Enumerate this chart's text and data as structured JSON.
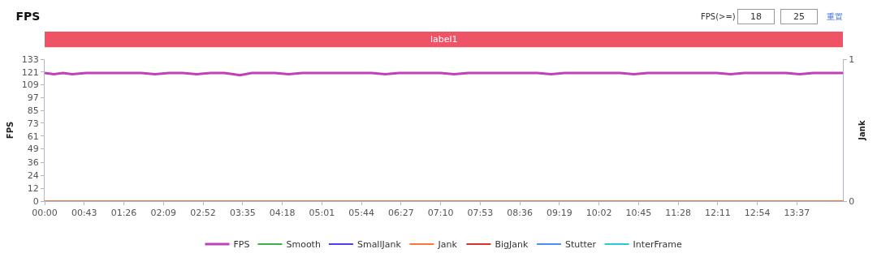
{
  "chart_data": {
    "type": "line",
    "title": "FPS",
    "ylabel": "FPS",
    "y2label": "Jank",
    "annotations": [
      "FPS(>=)",
      "18",
      "25",
      "重置"
    ],
    "bands": [
      {
        "axis": "x",
        "from": 0,
        "to": 867,
        "label": "label1"
      }
    ],
    "xlim": [
      0,
      867
    ],
    "xticks": [
      {
        "value": 0,
        "label": "00:00"
      },
      {
        "value": 43,
        "label": "00:43"
      },
      {
        "value": 86,
        "label": "01:26"
      },
      {
        "value": 129,
        "label": "02:09"
      },
      {
        "value": 172,
        "label": "02:52"
      },
      {
        "value": 215,
        "label": "03:35"
      },
      {
        "value": 258,
        "label": "04:18"
      },
      {
        "value": 301,
        "label": "05:01"
      },
      {
        "value": 344,
        "label": "05:44"
      },
      {
        "value": 387,
        "label": "06:27"
      },
      {
        "value": 430,
        "label": "07:10"
      },
      {
        "value": 473,
        "label": "07:53"
      },
      {
        "value": 516,
        "label": "08:36"
      },
      {
        "value": 559,
        "label": "09:19"
      },
      {
        "value": 602,
        "label": "10:02"
      },
      {
        "value": 645,
        "label": "10:45"
      },
      {
        "value": 688,
        "label": "11:28"
      },
      {
        "value": 731,
        "label": "12:11"
      },
      {
        "value": 774,
        "label": "12:54"
      },
      {
        "value": 817,
        "label": "13:37"
      }
    ],
    "ylim": [
      0,
      133
    ],
    "yticks": [
      0,
      12,
      24,
      36,
      49,
      61,
      73,
      85,
      97,
      109,
      121,
      133
    ],
    "y2lim": [
      0,
      1
    ],
    "y2ticks": [
      0,
      1
    ],
    "legend": "bottom",
    "marker": "none",
    "line_style": "solid",
    "series": [
      {
        "name": "FPS",
        "color": "#c23fb8",
        "x": [
          0,
          10,
          20,
          30,
          45,
          60,
          75,
          90,
          105,
          120,
          135,
          150,
          165,
          180,
          195,
          205,
          212,
          218,
          225,
          235,
          250,
          265,
          280,
          295,
          310,
          325,
          340,
          355,
          370,
          385,
          400,
          415,
          430,
          445,
          460,
          475,
          490,
          505,
          520,
          535,
          550,
          565,
          580,
          595,
          610,
          625,
          640,
          655,
          670,
          685,
          700,
          715,
          730,
          745,
          760,
          775,
          790,
          805,
          820,
          835,
          850,
          867
        ],
        "values": [
          120,
          119,
          120,
          119,
          120,
          120,
          120,
          120,
          120,
          119,
          120,
          120,
          119,
          120,
          120,
          119,
          118,
          119,
          120,
          120,
          120,
          119,
          120,
          120,
          120,
          120,
          120,
          120,
          119,
          120,
          120,
          120,
          120,
          119,
          120,
          120,
          120,
          120,
          120,
          120,
          119,
          120,
          120,
          120,
          120,
          120,
          119,
          120,
          120,
          120,
          120,
          120,
          120,
          119,
          120,
          120,
          120,
          120,
          119,
          120,
          120,
          120
        ]
      },
      {
        "name": "Smooth",
        "color": "#3cb04d",
        "axis": "y2"
      },
      {
        "name": "SmallJank",
        "color": "#4b3ff0",
        "axis": "y2"
      },
      {
        "name": "Jank",
        "color": "#f5793a",
        "axis": "y2",
        "x": [
          0,
          867
        ],
        "values": [
          0,
          0
        ]
      },
      {
        "name": "BigJank",
        "color": "#d9322d",
        "axis": "y2"
      },
      {
        "name": "Stutter",
        "color": "#4a90f0",
        "axis": "y2"
      },
      {
        "name": "InterFrame",
        "color": "#2ec7d6",
        "axis": "y2"
      }
    ]
  }
}
